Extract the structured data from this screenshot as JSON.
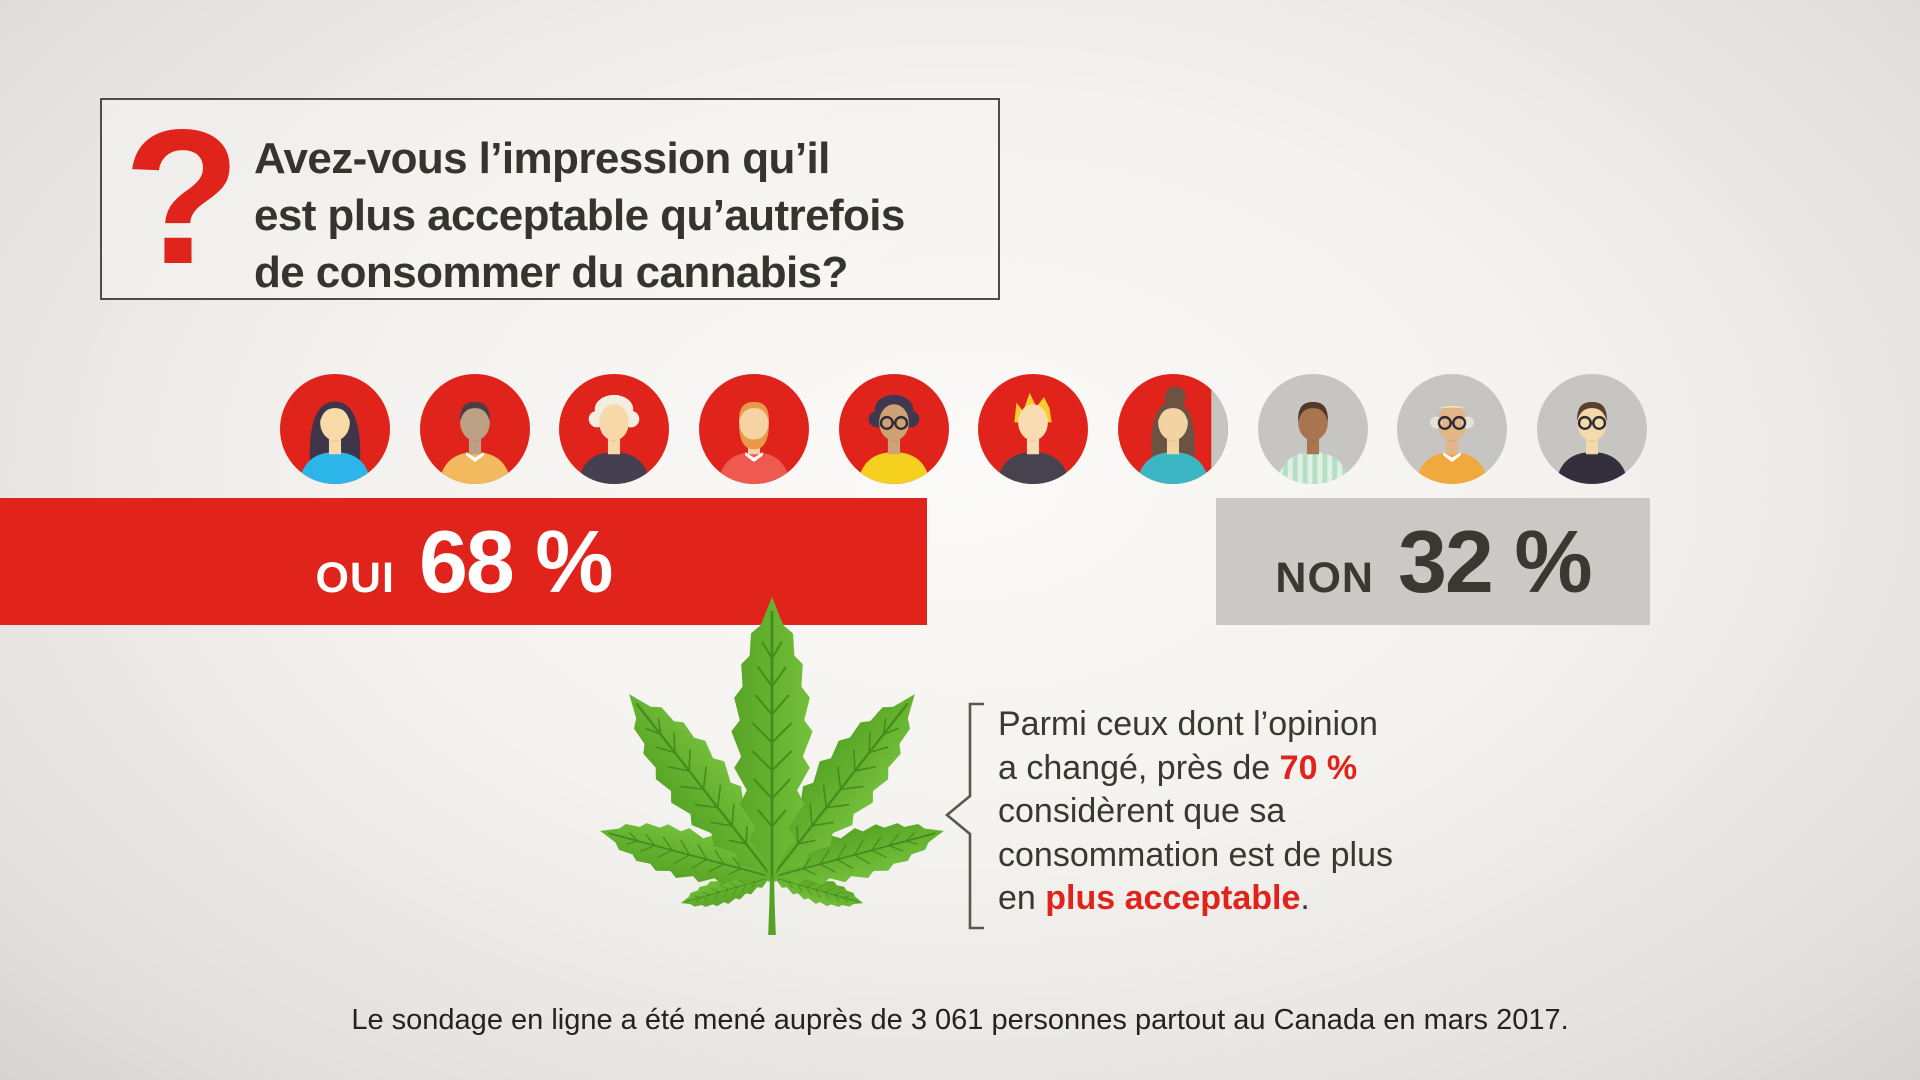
{
  "question": {
    "lines": [
      "Avez-vous l’impression qu’il",
      "est plus acceptable qu’autrefois",
      "de consommer du cannabis?"
    ],
    "mark": "?"
  },
  "chart_data": {
    "type": "bar",
    "categories": [
      "OUI",
      "NON"
    ],
    "values": [
      68,
      32
    ],
    "unit": "%",
    "title": "Avez-vous l’impression qu’il est plus acceptable qu’autrefois de consommer du cannabis?",
    "legend_position": "none",
    "grid": false,
    "people_icons_total": 10,
    "people_icons_filled": 6.8,
    "colors": {
      "oui": "#e0241c",
      "non": "#cac9c6"
    }
  },
  "results": {
    "oui": {
      "label": "OUI",
      "value": "68 %"
    },
    "non": {
      "label": "NON",
      "value": "32 %"
    }
  },
  "callout": {
    "lines": [
      [
        {
          "t": "Parmi ceux dont l’opinion"
        }
      ],
      [
        {
          "t": "a changé, près de "
        },
        {
          "t": "70 %",
          "red": true
        }
      ],
      [
        {
          "t": "considèrent que sa"
        }
      ],
      [
        {
          "t": "consommation est de plus"
        }
      ],
      [
        {
          "t": "en "
        },
        {
          "t": "plus acceptable",
          "red": true
        },
        {
          "t": "."
        }
      ]
    ]
  },
  "footnote": "Le sondage en ligne a été mené auprès de 3 061 personnes partout au Canada en mars 2017.",
  "colors": {
    "accent_red": "#e0241c",
    "bar_gray": "#cac9c6",
    "avatar_gray": "#c6c5c2",
    "text_dark": "#3a3833",
    "leaf_green": "#61ad2d"
  },
  "icons": [
    "question-mark-icon",
    "person-avatar-icon",
    "cannabis-leaf-icon",
    "callout-bracket-icon"
  ],
  "avatars": [
    {
      "style": "long",
      "hair": "#3e3548",
      "skin": "#f8d9a8",
      "shirt": "#2cb5e8"
    },
    {
      "style": "short",
      "hair": "#4a3d45",
      "skin": "#bca086",
      "shirt": "#f2b95f",
      "collar": true
    },
    {
      "style": "afro",
      "hair": "#f3eee2",
      "skin": "#f6d8a9",
      "shirt": "#454051"
    },
    {
      "style": "beard",
      "hair": "#e89a4a",
      "skin": "#f6d3a2",
      "shirt": "#ee5a50",
      "collar": true
    },
    {
      "style": "afro",
      "hair": "#3f3850",
      "skin": "#cfa276",
      "shirt": "#f6d01e",
      "glasses": true
    },
    {
      "style": "spiky",
      "hair": "#f7cd2d",
      "skin": "#f8ddb2",
      "shirt": "#47434e"
    },
    {
      "style": "bun",
      "hair": "#6b5243",
      "skin": "#f2d3a3",
      "shirt": "#3db6c4"
    },
    {
      "style": "short",
      "hair": "#53382a",
      "skin": "#a97450",
      "shirt": "#b5dfc3",
      "stripes": true
    },
    {
      "style": "bald",
      "hair": "#e8e2d4",
      "skin": "#e2b686",
      "shirt": "#f0a93c",
      "glasses": true,
      "collar": true
    },
    {
      "style": "short",
      "hair": "#5a4030",
      "skin": "#f4d9ab",
      "shirt": "#332f3d",
      "glasses": true
    }
  ]
}
